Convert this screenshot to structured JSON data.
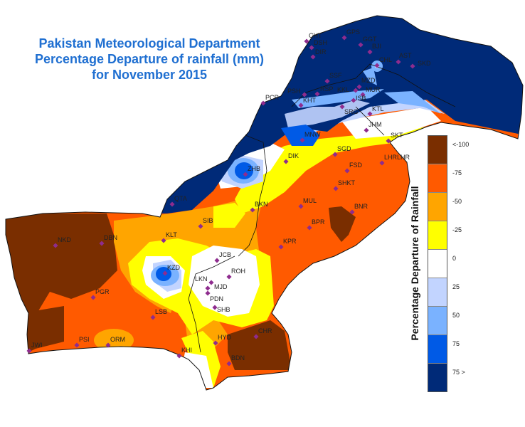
{
  "title": {
    "line1": "Pakistan Meteorological Department",
    "line2": "Percentage Departure  of rainfall (mm)",
    "line3": "for November  2015"
  },
  "legend": {
    "title": "Percentage Departure of Rainfall",
    "items": [
      {
        "label": "<-100",
        "color": "#7a2e00"
      },
      {
        "label": "-75",
        "color": "#ff5a00"
      },
      {
        "label": "-50",
        "color": "#ffa500"
      },
      {
        "label": "-25",
        "color": "#ffff00"
      },
      {
        "label": "0",
        "color": "#ffffff"
      },
      {
        "label": "25",
        "color": "#c2d4ff"
      },
      {
        "label": "50",
        "color": "#7ab2ff"
      },
      {
        "label": "75",
        "color": "#005ae6"
      },
      {
        "label": "75 >",
        "color": "#002a78"
      }
    ]
  },
  "stations": [
    "GPS",
    "GGT",
    "BJI",
    "CHT",
    "DSH",
    "DIR",
    "CHL",
    "AST",
    "SKD",
    "SSF",
    "MZD",
    "KKL",
    "PSH",
    "RSP",
    "PCR",
    "MUR",
    "KHT",
    "ISB",
    "SRG",
    "KTL",
    "JHM",
    "SKT",
    "MNW",
    "DIK",
    "SGD",
    "ZHB",
    "LHRLHR",
    "FSD",
    "SHKT",
    "QTA",
    "MUL",
    "BKN",
    "BNR",
    "SIB",
    "BPR",
    "KLT",
    "KPR",
    "NKD",
    "DBN",
    "JCB",
    "KZD",
    "ROH",
    "LKN",
    "MJD",
    "PDN",
    "PGR",
    "SHB",
    "LSB",
    "HYD",
    "CHR",
    "ORM",
    "PSI",
    "JWI",
    "KHI",
    "BDN"
  ]
}
